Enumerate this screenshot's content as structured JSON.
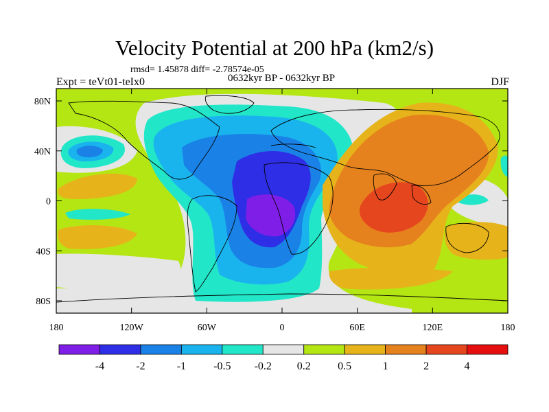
{
  "title": "Velocity Potential at 200 hPa (km2/s)",
  "stats": "rmsd= 1.45878 diff= -2.78574e-05",
  "left_label": "Expt = teVt01-teIx0",
  "center_label": "0632kyr BP - 0632kyr BP",
  "right_label": "DJF",
  "lon_ticks": [
    "180",
    "120W",
    "60W",
    "0",
    "60E",
    "120E",
    "180"
  ],
  "lat_ticks": [
    "80N",
    "40N",
    "0",
    "40S",
    "80S"
  ],
  "colorbar": {
    "labels": [
      "-4",
      "-2",
      "-1",
      "-0.5",
      "-0.2",
      "0.2",
      "0.5",
      "1",
      "2",
      "4"
    ],
    "colors": [
      "#7f1ee6",
      "#2e2ee6",
      "#1a82e6",
      "#19b4ee",
      "#22e6c8",
      "#e6e6e6",
      "#b4e614",
      "#e6b41a",
      "#e6821e",
      "#e6461e",
      "#e60f0f"
    ]
  }
}
